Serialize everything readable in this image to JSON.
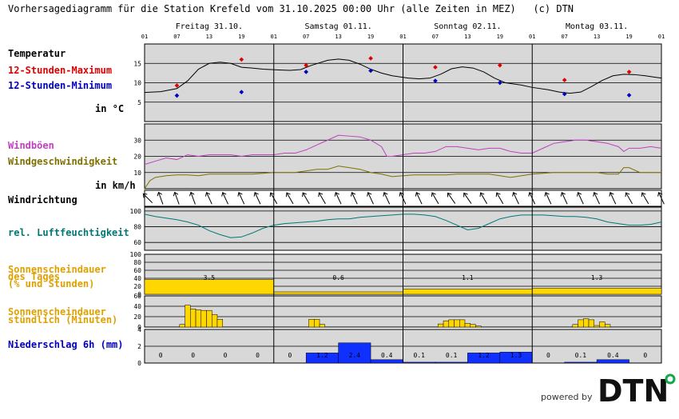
{
  "title": "Vorhersagediagramm für die Station Krefeld vom 31.10.2025 00:00 Uhr (alle Zeiten in MEZ)   (c) DTN",
  "labels": {
    "temperatur": "Temperatur",
    "max": "12-Stunden-Maximum",
    "min": "12-Stunden-Minimum",
    "temp_unit": "in °C",
    "windboen": "Windböen",
    "windgeschw": "Windgeschwindigkeit",
    "wind_unit": "in km/h",
    "windrichtung": "Windrichtung",
    "feuchte": "rel. Luftfeuchtigkeit",
    "sonne_tag_1": "Sonnenscheindauer",
    "sonne_tag_2": "des Tages",
    "sonne_tag_3": "(% und Stunden)",
    "sonne_std_1": "Sonnenscheindauer",
    "sonne_std_2": "stündlich (Minuten)",
    "niederschlag": "Niederschlag 6h (mm)"
  },
  "footer": {
    "powered_by": "powered by",
    "logo_text": "DTN"
  },
  "colors": {
    "panel_bg": "#d8d8d8",
    "temp": "#000000",
    "max": "#e00000",
    "min": "#0000c0",
    "gust": "#c040c0",
    "wind": "#807000",
    "humidity": "#007878",
    "sun": "#ffd700",
    "sun_label": "#e0a000",
    "rain": "#1030ff"
  },
  "chart_data": {
    "type": "line",
    "days": [
      {
        "label": "Freitag 31.10."
      },
      {
        "label": "Samstag 01.11."
      },
      {
        "label": "Sonntag 02.11."
      },
      {
        "label": "Montag 03.11."
      }
    ],
    "hour_ticks": [
      "01",
      "07",
      "13",
      "19",
      "01",
      "07",
      "13",
      "19",
      "01",
      "07",
      "13",
      "19",
      "01",
      "07",
      "13",
      "19",
      "01"
    ],
    "temperature": {
      "ylim": [
        0,
        20
      ],
      "yticks": [
        5,
        10,
        15
      ],
      "points": [
        [
          1,
          7.5
        ],
        [
          4,
          7.7
        ],
        [
          7,
          8.5
        ],
        [
          9,
          10.5
        ],
        [
          11,
          13.5
        ],
        [
          13,
          15
        ],
        [
          15,
          15.3
        ],
        [
          17,
          15
        ],
        [
          19,
          14
        ],
        [
          21,
          13.8
        ],
        [
          23,
          13.5
        ],
        [
          26,
          13.3
        ],
        [
          28,
          13.2
        ],
        [
          30,
          13.4
        ],
        [
          32,
          14.5
        ],
        [
          35,
          15.8
        ],
        [
          37,
          16.1
        ],
        [
          39,
          15.8
        ],
        [
          41,
          14.8
        ],
        [
          43,
          13.5
        ],
        [
          45,
          12.5
        ],
        [
          47,
          11.8
        ],
        [
          50,
          11.2
        ],
        [
          52,
          11
        ],
        [
          54,
          11.2
        ],
        [
          56,
          12.2
        ],
        [
          58,
          13.6
        ],
        [
          60,
          14.1
        ],
        [
          62,
          13.8
        ],
        [
          64,
          12.8
        ],
        [
          66,
          11.2
        ],
        [
          68,
          10
        ],
        [
          71,
          9.4
        ],
        [
          73,
          8.8
        ],
        [
          76,
          8.2
        ],
        [
          78,
          7.6
        ],
        [
          80,
          7.3
        ],
        [
          82,
          7.6
        ],
        [
          84,
          9
        ],
        [
          86,
          10.6
        ],
        [
          88,
          11.8
        ],
        [
          90,
          12.2
        ],
        [
          92,
          12.1
        ],
        [
          94,
          11.8
        ],
        [
          96,
          11.4
        ],
        [
          97,
          11.2
        ]
      ],
      "max": [
        [
          7,
          9.3
        ],
        [
          19,
          16
        ],
        [
          31,
          14.5
        ],
        [
          43,
          16.3
        ],
        [
          55,
          14
        ],
        [
          67,
          14.5
        ],
        [
          79,
          10.7
        ],
        [
          91,
          12.8
        ]
      ],
      "min": [
        [
          7,
          6.7
        ],
        [
          19,
          7.6
        ],
        [
          31,
          12.8
        ],
        [
          43,
          13.1
        ],
        [
          55,
          10.5
        ],
        [
          67,
          10
        ],
        [
          79,
          7.1
        ],
        [
          91,
          6.8
        ]
      ]
    },
    "wind": {
      "ylim": [
        0,
        40
      ],
      "yticks": [
        10,
        20,
        30
      ],
      "gusts": [
        [
          1,
          15
        ],
        [
          3,
          17
        ],
        [
          5,
          19
        ],
        [
          7,
          18
        ],
        [
          9,
          21
        ],
        [
          11,
          20
        ],
        [
          13,
          21
        ],
        [
          15,
          21
        ],
        [
          17,
          21
        ],
        [
          19,
          20
        ],
        [
          21,
          21
        ],
        [
          23,
          21
        ],
        [
          25,
          21
        ],
        [
          27,
          22
        ],
        [
          29,
          22
        ],
        [
          31,
          24
        ],
        [
          33,
          27
        ],
        [
          35,
          30
        ],
        [
          37,
          33
        ],
        [
          39,
          32.5
        ],
        [
          41,
          32
        ],
        [
          43,
          30
        ],
        [
          45,
          26
        ],
        [
          46,
          20
        ],
        [
          47,
          20
        ],
        [
          49,
          21
        ],
        [
          51,
          22
        ],
        [
          53,
          22
        ],
        [
          55,
          23
        ],
        [
          57,
          26
        ],
        [
          59,
          26
        ],
        [
          61,
          25
        ],
        [
          63,
          24
        ],
        [
          65,
          25
        ],
        [
          67,
          25
        ],
        [
          69,
          23
        ],
        [
          71,
          22
        ],
        [
          73,
          22
        ],
        [
          75,
          25
        ],
        [
          77,
          28
        ],
        [
          79,
          29
        ],
        [
          81,
          30
        ],
        [
          83,
          30
        ],
        [
          85,
          29
        ],
        [
          87,
          28
        ],
        [
          89,
          26
        ],
        [
          90,
          23
        ],
        [
          91,
          25
        ],
        [
          93,
          25
        ],
        [
          95,
          26
        ],
        [
          97,
          25
        ]
      ],
      "speed": [
        [
          1,
          0
        ],
        [
          2,
          5
        ],
        [
          3,
          7
        ],
        [
          5,
          8
        ],
        [
          7,
          8.5
        ],
        [
          9,
          8.5
        ],
        [
          11,
          8
        ],
        [
          13,
          9
        ],
        [
          15,
          9
        ],
        [
          17,
          9
        ],
        [
          19,
          9
        ],
        [
          21,
          9
        ],
        [
          23,
          9.5
        ],
        [
          25,
          10
        ],
        [
          27,
          10
        ],
        [
          29,
          10
        ],
        [
          31,
          11
        ],
        [
          33,
          12
        ],
        [
          35,
          12
        ],
        [
          37,
          14
        ],
        [
          39,
          13
        ],
        [
          41,
          12
        ],
        [
          43,
          10
        ],
        [
          45,
          9
        ],
        [
          47,
          7.5
        ],
        [
          49,
          8
        ],
        [
          51,
          8.5
        ],
        [
          53,
          8.5
        ],
        [
          55,
          8.5
        ],
        [
          57,
          8.5
        ],
        [
          59,
          9
        ],
        [
          61,
          9
        ],
        [
          63,
          9
        ],
        [
          65,
          9
        ],
        [
          67,
          8
        ],
        [
          69,
          7
        ],
        [
          71,
          8
        ],
        [
          73,
          9
        ],
        [
          75,
          9.5
        ],
        [
          77,
          10
        ],
        [
          79,
          10
        ],
        [
          81,
          10
        ],
        [
          83,
          10
        ],
        [
          85,
          10
        ],
        [
          87,
          9
        ],
        [
          89,
          9
        ],
        [
          90,
          13
        ],
        [
          91,
          13
        ],
        [
          93,
          10
        ],
        [
          95,
          10
        ],
        [
          97,
          10
        ]
      ]
    },
    "wind_direction": {
      "interval_hours": 3,
      "angles_deg": [
        315,
        -20,
        -20,
        -20,
        -25,
        -25,
        -25,
        -25,
        -30,
        -30,
        -30,
        -30,
        -25,
        -25,
        -25,
        -25,
        -25,
        -25,
        -30,
        -35,
        -35,
        -30,
        -30,
        -25,
        -25,
        -25,
        -25,
        -25,
        -25,
        -25,
        -30,
        -30,
        -25,
        -25,
        -20
      ]
    },
    "humidity": {
      "ylim": [
        50,
        105
      ],
      "yticks": [
        60,
        80,
        100
      ],
      "points": [
        [
          1,
          96
        ],
        [
          3,
          93
        ],
        [
          5,
          91
        ],
        [
          7,
          89
        ],
        [
          9,
          86
        ],
        [
          11,
          82
        ],
        [
          13,
          75
        ],
        [
          15,
          70
        ],
        [
          17,
          66
        ],
        [
          19,
          67
        ],
        [
          21,
          72
        ],
        [
          23,
          78
        ],
        [
          25,
          82
        ],
        [
          27,
          84
        ],
        [
          29,
          85
        ],
        [
          31,
          86
        ],
        [
          33,
          87
        ],
        [
          35,
          89
        ],
        [
          37,
          90
        ],
        [
          39,
          90
        ],
        [
          41,
          92
        ],
        [
          43,
          93
        ],
        [
          45,
          94
        ],
        [
          47,
          95
        ],
        [
          49,
          96
        ],
        [
          51,
          96
        ],
        [
          53,
          95
        ],
        [
          55,
          93
        ],
        [
          57,
          88
        ],
        [
          59,
          82
        ],
        [
          61,
          76
        ],
        [
          63,
          78
        ],
        [
          65,
          84
        ],
        [
          67,
          90
        ],
        [
          69,
          93
        ],
        [
          71,
          95
        ],
        [
          73,
          95
        ],
        [
          75,
          95
        ],
        [
          77,
          94
        ],
        [
          79,
          93
        ],
        [
          81,
          93
        ],
        [
          83,
          92
        ],
        [
          85,
          90
        ],
        [
          87,
          86
        ],
        [
          89,
          84
        ],
        [
          91,
          82
        ],
        [
          93,
          82
        ],
        [
          95,
          83
        ],
        [
          97,
          86
        ]
      ]
    },
    "sunshine_day": {
      "ylim": [
        0,
        100
      ],
      "yticks": [
        0,
        20,
        40,
        60,
        80,
        100
      ],
      "percent": [
        37,
        6,
        13,
        15
      ],
      "hours": [
        "3.5",
        "0.6",
        "1.1",
        "1.3"
      ]
    },
    "sunshine_hourly": {
      "ylim": [
        0,
        60
      ],
      "yticks": [
        0,
        20,
        40,
        60
      ],
      "bars": [
        [
          8,
          5
        ],
        [
          9,
          42
        ],
        [
          10,
          35
        ],
        [
          11,
          33
        ],
        [
          12,
          32
        ],
        [
          13,
          32
        ],
        [
          14,
          24
        ],
        [
          15,
          15
        ],
        [
          32,
          15
        ],
        [
          33,
          15
        ],
        [
          34,
          5
        ],
        [
          56,
          6
        ],
        [
          57,
          12
        ],
        [
          58,
          14
        ],
        [
          59,
          14
        ],
        [
          60,
          14
        ],
        [
          61,
          7
        ],
        [
          62,
          5
        ],
        [
          63,
          2
        ],
        [
          81,
          5
        ],
        [
          82,
          14
        ],
        [
          83,
          16
        ],
        [
          84,
          14
        ],
        [
          85,
          3
        ],
        [
          86,
          10
        ],
        [
          87,
          5
        ]
      ]
    },
    "precip_6h": {
      "ylim": [
        0,
        4
      ],
      "yticks": [
        0,
        2,
        4
      ],
      "values": [
        0,
        0,
        0,
        0,
        0,
        1.2,
        2.4,
        0.4,
        0.1,
        0.1,
        1.2,
        1.3,
        0,
        0.1,
        0.4,
        0
      ],
      "labels": [
        "0",
        "0",
        "0",
        "0",
        "0",
        "1.2",
        "2.4",
        "0.4",
        "0.1",
        "0.1",
        "1.2",
        "1.3",
        "0",
        "0.1",
        "0.4",
        "0"
      ]
    }
  }
}
